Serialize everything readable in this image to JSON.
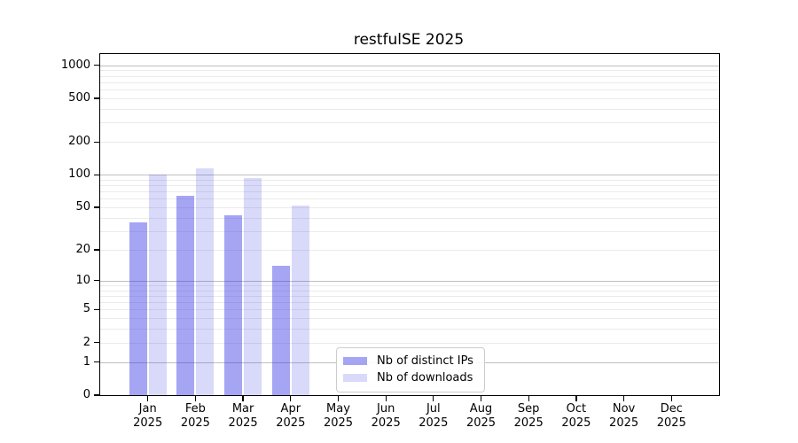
{
  "chart_data": {
    "type": "bar",
    "title": "restfulSE 2025",
    "months": [
      "Jan",
      "Feb",
      "Mar",
      "Apr",
      "May",
      "Jun",
      "Jul",
      "Aug",
      "Sep",
      "Oct",
      "Nov",
      "Dec"
    ],
    "year_label": "2025",
    "series": [
      {
        "name": "Nb of distinct IPs",
        "color": "rgba(51,51,230,0.44)",
        "values": [
          36,
          64,
          42,
          14,
          null,
          null,
          null,
          null,
          null,
          null,
          null,
          null
        ]
      },
      {
        "name": "Nb of downloads",
        "color": "rgba(51,51,230,0.19)",
        "values": [
          100,
          115,
          94,
          52,
          null,
          null,
          null,
          null,
          null,
          null,
          null,
          null
        ]
      }
    ],
    "y_axis": {
      "scale": "log1p",
      "max": 1265,
      "ticks": [
        0,
        1,
        2,
        5,
        10,
        20,
        50,
        100,
        200,
        500,
        1000
      ],
      "major_grid": [
        1,
        10,
        100,
        1000
      ],
      "minor_grid": [
        2,
        3,
        4,
        5,
        6,
        7,
        8,
        9,
        20,
        30,
        40,
        50,
        60,
        70,
        80,
        90,
        200,
        300,
        400,
        500,
        600,
        700,
        800,
        900
      ]
    },
    "x_axis": {
      "slots": 13
    },
    "legend_position": "lower center-left"
  }
}
